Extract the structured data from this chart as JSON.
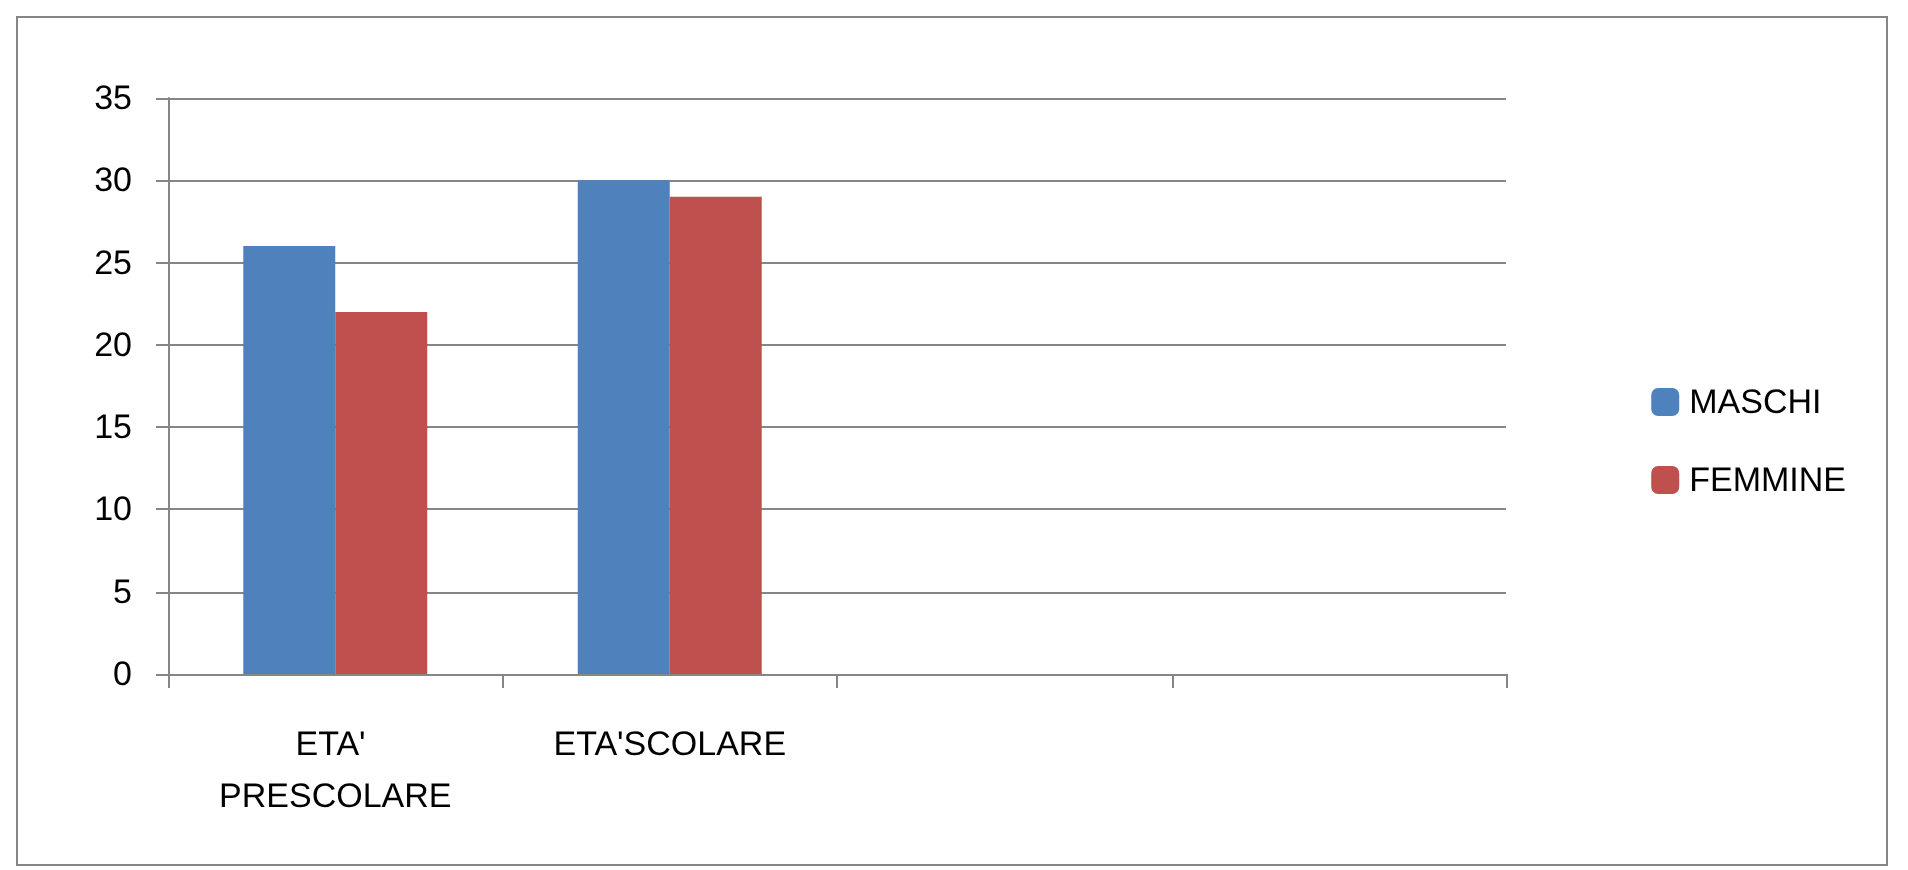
{
  "chart_data": {
    "type": "bar",
    "categories": [
      "ETA' PRESCOLARE",
      "ETA'SCOLARE",
      null,
      null
    ],
    "series": [
      {
        "name": "MASCHI",
        "color": "#4f81bd",
        "values": [
          26,
          30,
          null,
          null
        ]
      },
      {
        "name": "FEMMINE",
        "color": "#c0504d",
        "values": [
          22,
          29,
          null,
          null
        ]
      }
    ],
    "ylim": [
      0,
      35
    ],
    "yticks": [
      0,
      5,
      10,
      15,
      20,
      25,
      30,
      35
    ],
    "grid": "y",
    "legend": "right"
  }
}
